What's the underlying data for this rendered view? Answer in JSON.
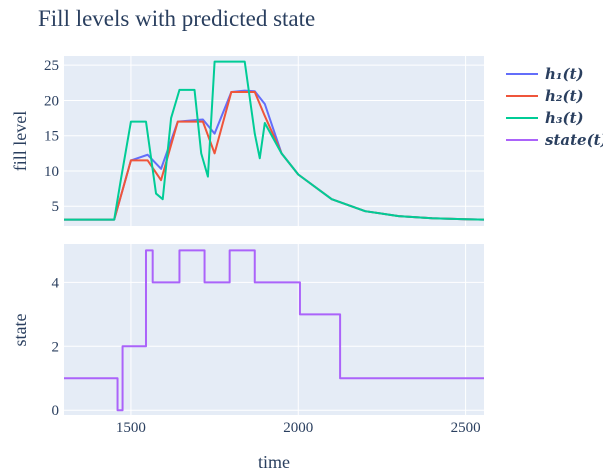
{
  "chart_data": {
    "title": "Fill levels with predicted state",
    "xlabel": "time",
    "xlim": [
      1300,
      2555
    ],
    "x_ticks": [
      1500,
      2000,
      2500
    ],
    "x_tick_labels": [
      "1500",
      "2000",
      "2500"
    ],
    "colors": {
      "plot_bg": "#E5ECF6",
      "grid": "#ffffff",
      "text": "#2a3f5f"
    },
    "legend_position": "top-right",
    "panels": [
      {
        "type": "line",
        "ylabel": "fill level",
        "ylim": [
          2.2,
          26.3
        ],
        "y_ticks": [
          5,
          10,
          15,
          20,
          25
        ],
        "y_tick_labels": [
          "5",
          "10",
          "15",
          "20",
          "25"
        ],
        "series": [
          {
            "name": "h₁(t)",
            "color": "#636EFA",
            "x": [
              1300,
              1450,
              1500,
              1550,
              1590,
              1640,
              1715,
              1750,
              1800,
              1840,
              1870,
              1900,
              1950,
              2000,
              2100,
              2200,
              2300,
              2400,
              2500,
              2555
            ],
            "y": [
              3.1,
              3.1,
              11.5,
              12.3,
              10.3,
              17.0,
              17.3,
              15.3,
              21.2,
              21.4,
              21.3,
              19.5,
              12.5,
              9.5,
              6.0,
              4.3,
              3.6,
              3.3,
              3.15,
              3.1
            ]
          },
          {
            "name": "h₂(t)",
            "color": "#EF553B",
            "x": [
              1300,
              1450,
              1500,
              1550,
              1590,
              1640,
              1715,
              1750,
              1800,
              1840,
              1870,
              1900,
              1950,
              2000,
              2100,
              2200,
              2300,
              2400,
              2500,
              2555
            ],
            "y": [
              3.1,
              3.1,
              11.5,
              11.5,
              8.7,
              17.0,
              17.0,
              12.5,
              21.2,
              21.2,
              21.2,
              17.8,
              12.5,
              9.5,
              6.0,
              4.3,
              3.6,
              3.3,
              3.15,
              3.1
            ]
          },
          {
            "name": "h₃(t)",
            "color": "#00CC96",
            "x": [
              1300,
              1450,
              1470,
              1500,
              1545,
              1575,
              1595,
              1620,
              1645,
              1690,
              1710,
              1730,
              1750,
              1790,
              1840,
              1870,
              1885,
              1900,
              1950,
              2000,
              2100,
              2200,
              2300,
              2400,
              2500,
              2555
            ],
            "y": [
              3.1,
              3.1,
              8.8,
              17.0,
              17.0,
              6.8,
              6.0,
              17.5,
              21.5,
              21.5,
              12.5,
              9.2,
              25.5,
              25.5,
              25.5,
              15.3,
              11.8,
              16.8,
              12.5,
              9.5,
              6.0,
              4.3,
              3.6,
              3.3,
              3.15,
              3.1
            ]
          }
        ]
      },
      {
        "type": "step",
        "ylabel": "state",
        "ylim": [
          -0.15,
          5.2
        ],
        "y_ticks": [
          0,
          2,
          4
        ],
        "y_tick_labels": [
          "0",
          "2",
          "4"
        ],
        "series": [
          {
            "name": "state(t)",
            "color": "#AB63FA",
            "x": [
              1300,
              1460,
              1475,
              1545,
              1565,
              1645,
              1720,
              1795,
              1870,
              2005,
              2125,
              2555
            ],
            "y": [
              1,
              0,
              2,
              5,
              4,
              5,
              4,
              5,
              4,
              3,
              1,
              1
            ]
          }
        ]
      }
    ]
  }
}
